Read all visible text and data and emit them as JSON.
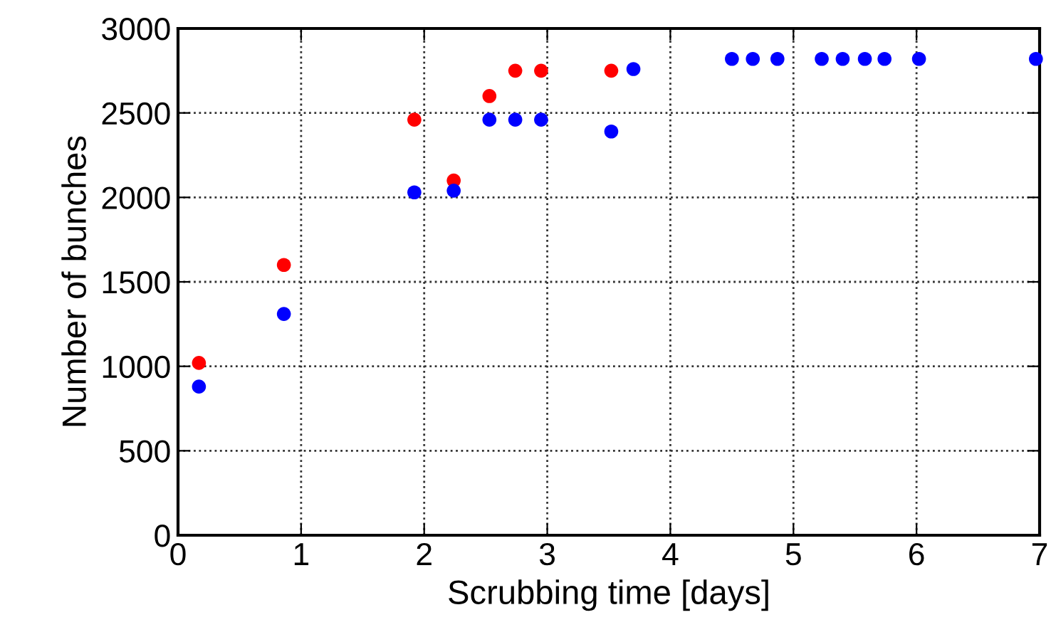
{
  "chart_data": {
    "type": "scatter",
    "xlabel": "Scrubbing time [days]",
    "ylabel": "Number of bunches",
    "series": [
      {
        "color": "#ff0000",
        "x": [
          0.17,
          0.86,
          1.92,
          2.24,
          2.53,
          2.74,
          2.95,
          3.52
        ],
        "values": [
          1020,
          1600,
          2460,
          2100,
          2600,
          2750,
          2750,
          2750
        ]
      },
      {
        "color": "#0000ff",
        "x": [
          0.17,
          0.86,
          1.92,
          2.24,
          2.53,
          2.74,
          2.95,
          3.52,
          3.7,
          4.5,
          4.67,
          4.87,
          5.23,
          5.4,
          5.58,
          5.74,
          6.02,
          6.97
        ],
        "values": [
          880,
          1310,
          2030,
          2040,
          2460,
          2460,
          2460,
          2390,
          2760,
          2820,
          2820,
          2820,
          2820,
          2820,
          2820,
          2820,
          2820,
          2820
        ]
      }
    ],
    "xlim": [
      0,
      7
    ],
    "xticks": [
      0,
      1,
      2,
      3,
      4,
      5,
      6,
      7
    ],
    "ylim": [
      0,
      3000
    ],
    "yticks": [
      0,
      500,
      1000,
      1500,
      2000,
      2500,
      3000
    ],
    "grid": true,
    "marker": "circle"
  }
}
